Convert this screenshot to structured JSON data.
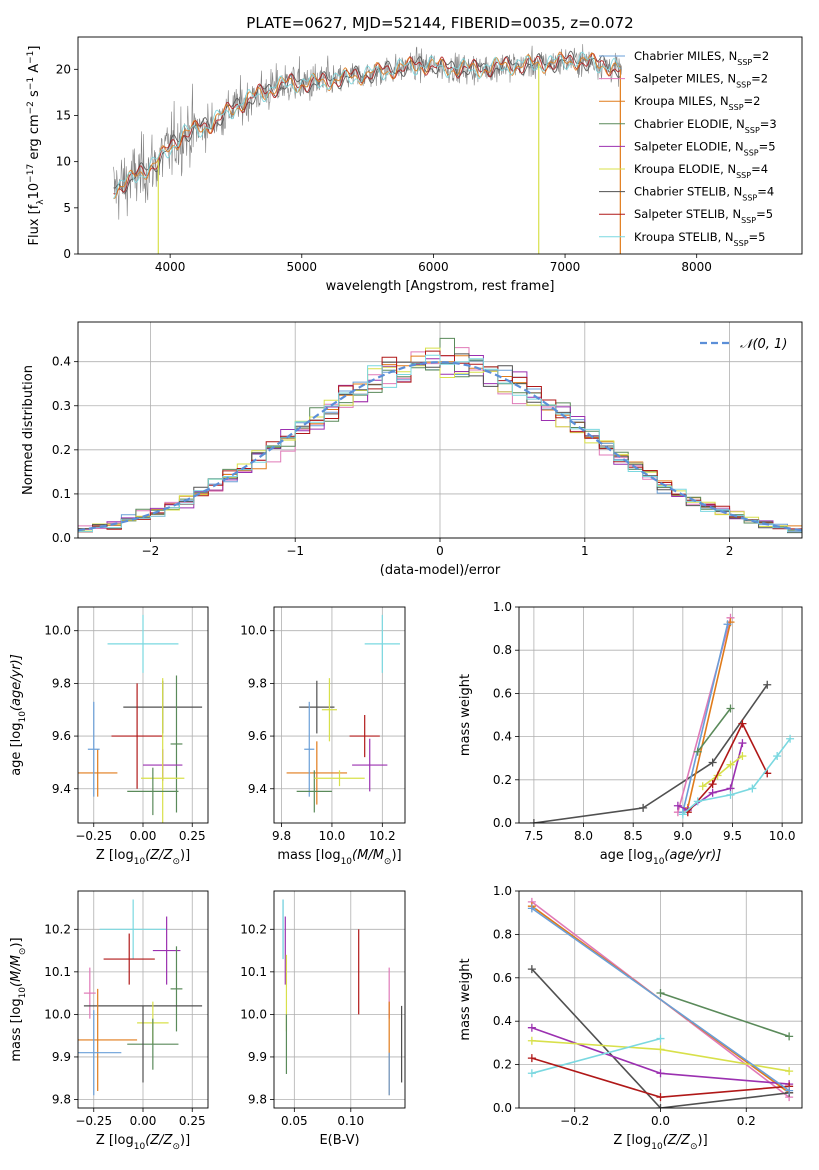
{
  "title": "PLATE=0627, MJD=52144, FIBERID=0035, z=0.072",
  "palette": {
    "Chabrier MILES": "#6a9fd8",
    "Salpeter MILES": "#e07ab8",
    "Kroupa MILES": "#e07b1a",
    "Chabrier ELODIE": "#5a8a5a",
    "Salpeter ELODIE": "#9b30b0",
    "Kroupa ELODIE": "#d8e04a",
    "Chabrier STELIB": "#505050",
    "Salpeter STELIB": "#b01818",
    "Kroupa STELIB": "#7ad8e0",
    "spectrum": "#808080",
    "gauss": "#5b8fd8",
    "grid": "#b0b0b0"
  },
  "chart_data": [
    {
      "id": "spectrum",
      "type": "line",
      "xlabel": "wavelength [Angstrom, rest frame]",
      "ylabel_main": "Flux [f",
      "ylabel_sub": "λ",
      "ylabel_mid": "10",
      "ylabel_sup": "−17",
      "ylabel_tail": " erg cm",
      "ylabel_sup2": "−2",
      "ylabel_tail2": " s",
      "ylabel_sup3": "−1",
      "ylabel_tail3": " A",
      "ylabel_sup4": "−1",
      "ylabel_end": "]",
      "xlim": [
        3300,
        8800
      ],
      "ylim": [
        0,
        23.5
      ],
      "xticks": [
        4000,
        5000,
        6000,
        7000,
        8000
      ],
      "yticks": [
        0,
        5,
        10,
        15,
        20
      ],
      "grid": false,
      "legend_position": "right",
      "continuum": [
        [
          3570,
          7
        ],
        [
          3700,
          8
        ],
        [
          3800,
          9
        ],
        [
          3900,
          10
        ],
        [
          4000,
          11.5
        ],
        [
          4100,
          13
        ],
        [
          4300,
          14
        ],
        [
          4500,
          16
        ],
        [
          4700,
          17.5
        ],
        [
          4900,
          18.5
        ],
        [
          5100,
          18.5
        ],
        [
          5300,
          19
        ],
        [
          5500,
          19.5
        ],
        [
          5700,
          20
        ],
        [
          5900,
          20.5
        ],
        [
          6100,
          20.2
        ],
        [
          6300,
          20
        ],
        [
          6500,
          20.3
        ],
        [
          6700,
          20.5
        ],
        [
          6900,
          20.7
        ],
        [
          7100,
          21
        ],
        [
          7300,
          20.5
        ],
        [
          7400,
          20
        ]
      ],
      "dropouts": [
        {
          "series": "Kroupa ELODIE",
          "x": 3910
        },
        {
          "series": "Kroupa ELODIE",
          "x": 6800
        },
        {
          "series": "Kroupa MILES",
          "x": 7420
        }
      ],
      "legend": [
        {
          "name": "Chabrier MILES",
          "nssp": "2"
        },
        {
          "name": "Salpeter MILES",
          "nssp": "2"
        },
        {
          "name": "Kroupa MILES",
          "nssp": "2"
        },
        {
          "name": "Chabrier ELODIE",
          "nssp": "3"
        },
        {
          "name": "Salpeter ELODIE",
          "nssp": "5"
        },
        {
          "name": "Kroupa ELODIE",
          "nssp": "4"
        },
        {
          "name": "Chabrier STELIB",
          "nssp": "4"
        },
        {
          "name": "Salpeter STELIB",
          "nssp": "5"
        },
        {
          "name": "Kroupa STELIB",
          "nssp": "5"
        }
      ],
      "legend_prefix": "N",
      "legend_sub": "SSP"
    },
    {
      "id": "hist",
      "type": "line",
      "xlabel": "(data-model)/error",
      "ylabel": "Normed distribution",
      "xlim": [
        -2.5,
        2.5
      ],
      "ylim": [
        0,
        0.49
      ],
      "xticks": [
        -2,
        -1,
        0,
        1,
        2
      ],
      "xticklabels": [
        "−2",
        "−1",
        "0",
        "1",
        "2"
      ],
      "yticks": [
        0.0,
        0.1,
        0.2,
        0.3,
        0.4
      ],
      "yticklabels": [
        "0.0",
        "0.1",
        "0.2",
        "0.3",
        "0.4"
      ],
      "grid": true,
      "gauss_label": "𝒩(0, 1)",
      "legend_position": "top-right",
      "bins": 50
    },
    {
      "id": "age_Z",
      "type": "scatter",
      "xlabel": "Z [log",
      "xlabel_sub": "10",
      "xlabel_tail": "(Z/Z",
      "xlabel_sub2": "⊙",
      "xlabel_end": ")]",
      "ylabel": "age  [log",
      "ylabel_sub": "10",
      "ylabel_tail": "(age/yr)]",
      "xlim": [
        -0.33,
        0.33
      ],
      "ylim": [
        9.27,
        10.09
      ],
      "xticks": [
        -0.25,
        0.0,
        0.25
      ],
      "xticklabels": [
        "−0.25",
        "0.00",
        "0.25"
      ],
      "yticks": [
        9.4,
        9.6,
        9.8,
        10.0
      ],
      "yticklabels": [
        "9.4",
        "9.6",
        "9.8",
        "10.0"
      ],
      "grid": true,
      "points": [
        {
          "series": "Kroupa STELIB",
          "x": 0.0,
          "xerr": 0.18,
          "y": 9.95,
          "yerr": 0.11
        },
        {
          "series": "Chabrier STELIB",
          "x": 0.1,
          "xerr": 0.2,
          "y": 9.71,
          "yerr": 0.1
        },
        {
          "series": "Chabrier ELODIE",
          "x": 0.17,
          "xerr": 0.03,
          "y": 9.57,
          "yerr": 0.26
        },
        {
          "series": "Salpeter STELIB",
          "x": -0.03,
          "xerr": 0.13,
          "y": 9.6,
          "yerr": 0.2
        },
        {
          "series": "Salpeter ELODIE",
          "x": 0.1,
          "xerr": 0.1,
          "y": 9.49,
          "yerr": 0.06
        },
        {
          "series": "Kroupa ELODIE",
          "x": 0.1,
          "xerr": 0.11,
          "y": 9.44,
          "yerr": 0.38
        },
        {
          "series": "Kroupa MILES",
          "x": -0.23,
          "xerr": 0.1,
          "y": 9.46,
          "yerr": 0.09
        },
        {
          "series": "Chabrier MILES",
          "x": -0.25,
          "xerr": 0.03,
          "y": 9.55,
          "yerr": 0.18
        },
        {
          "series": "Chabrier ELODIE",
          "x": 0.05,
          "xerr": 0.13,
          "y": 9.39,
          "yerr": 0.09
        }
      ]
    },
    {
      "id": "age_mass",
      "type": "scatter",
      "xlabel": "mass [log",
      "xlabel_sub": "10",
      "xlabel_tail": "(M/M",
      "xlabel_sub2": "⊙",
      "xlabel_end": ")]",
      "xlim": [
        9.77,
        10.29
      ],
      "ylim": [
        9.27,
        10.09
      ],
      "xticks": [
        9.8,
        10.0,
        10.2
      ],
      "xticklabels": [
        "9.8",
        "10.0",
        "10.2"
      ],
      "yticks": [
        9.4,
        9.6,
        9.8,
        10.0
      ],
      "yticklabels": [
        "9.4",
        "9.6",
        "9.8",
        "10.0"
      ],
      "grid": true,
      "points": [
        {
          "series": "Kroupa STELIB",
          "x": 10.2,
          "xerr": 0.07,
          "y": 9.95,
          "yerr": 0.11
        },
        {
          "series": "Chabrier STELIB",
          "x": 9.94,
          "xerr": 0.07,
          "y": 9.71,
          "yerr": 0.1
        },
        {
          "series": "Kroupa ELODIE",
          "x": 9.99,
          "xerr": 0.03,
          "y": 9.7,
          "yerr": 0.12
        },
        {
          "series": "Salpeter STELIB",
          "x": 10.13,
          "xerr": 0.06,
          "y": 9.6,
          "yerr": 0.08
        },
        {
          "series": "Salpeter ELODIE",
          "x": 10.15,
          "xerr": 0.07,
          "y": 9.49,
          "yerr": 0.1
        },
        {
          "series": "Kroupa MILES",
          "x": 9.94,
          "xerr": 0.12,
          "y": 9.46,
          "yerr": 0.12
        },
        {
          "series": "Chabrier MILES",
          "x": 9.91,
          "xerr": 0.02,
          "y": 9.55,
          "yerr": 0.18
        },
        {
          "series": "Chabrier ELODIE",
          "x": 9.93,
          "xerr": 0.07,
          "y": 9.39,
          "yerr": 0.08
        },
        {
          "series": "Kroupa ELODIE",
          "x": 10.03,
          "xerr": 0.1,
          "y": 9.44,
          "yerr": 0.03
        }
      ]
    },
    {
      "id": "mw_age",
      "type": "line",
      "xlabel": "age  [log",
      "xlabel_sub": "10",
      "xlabel_tail": "(age/yr)]",
      "ylabel": "mass weight",
      "xlim": [
        7.35,
        10.2
      ],
      "ylim": [
        0,
        1.0
      ],
      "xticks": [
        7.5,
        8.0,
        8.5,
        9.0,
        9.5,
        10.0
      ],
      "xticklabels": [
        "7.5",
        "8.0",
        "8.5",
        "9.0",
        "9.5",
        "10.0"
      ],
      "yticks": [
        0.0,
        0.2,
        0.4,
        0.6,
        0.8,
        1.0
      ],
      "yticklabels": [
        "0.0",
        "0.2",
        "0.4",
        "0.6",
        "0.8",
        "1.0"
      ],
      "grid": true,
      "series": [
        {
          "name": "Chabrier STELIB",
          "x": [
            7.5,
            8.6,
            9.3,
            9.85
          ],
          "y": [
            0.0,
            0.07,
            0.28,
            0.64
          ]
        },
        {
          "name": "Salpeter MILES",
          "x": [
            8.95,
            9.48
          ],
          "y": [
            0.05,
            0.95
          ]
        },
        {
          "name": "Kroupa MILES",
          "x": [
            9.05,
            9.48
          ],
          "y": [
            0.07,
            0.93
          ]
        },
        {
          "name": "Chabrier MILES",
          "x": [
            9.0,
            9.45
          ],
          "y": [
            0.05,
            0.92
          ]
        },
        {
          "name": "Chabrier ELODIE",
          "x": [
            9.15,
            9.48
          ],
          "y": [
            0.33,
            0.53
          ]
        },
        {
          "name": "Salpeter ELODIE",
          "x": [
            8.95,
            9.05,
            9.3,
            9.48,
            9.6
          ],
          "y": [
            0.08,
            0.06,
            0.14,
            0.16,
            0.37
          ]
        },
        {
          "name": "Kroupa ELODIE",
          "x": [
            9.2,
            9.35,
            9.48,
            9.6
          ],
          "y": [
            0.17,
            0.22,
            0.27,
            0.31
          ]
        },
        {
          "name": "Salpeter STELIB",
          "x": [
            9.05,
            9.3,
            9.6,
            9.85
          ],
          "y": [
            0.05,
            0.18,
            0.46,
            0.23
          ]
        },
        {
          "name": "Kroupa STELIB",
          "x": [
            9.0,
            9.15,
            9.48,
            9.7,
            9.95,
            10.08
          ],
          "y": [
            0.04,
            0.1,
            0.13,
            0.16,
            0.31,
            0.39
          ]
        }
      ]
    },
    {
      "id": "mass_Z",
      "type": "scatter",
      "xlabel": "Z [log",
      "xlabel_sub": "10",
      "xlabel_tail": "(Z/Z",
      "xlabel_sub2": "⊙",
      "xlabel_end": ")]",
      "ylabel": "mass [log",
      "ylabel_sub": "10",
      "ylabel_tail": "(M/M",
      "ylabel_sub2": "⊙",
      "ylabel_end": ")]",
      "xlim": [
        -0.33,
        0.33
      ],
      "ylim": [
        9.78,
        10.29
      ],
      "xticks": [
        -0.25,
        0.0,
        0.25
      ],
      "xticklabels": [
        "−0.25",
        "0.00",
        "0.25"
      ],
      "yticks": [
        9.8,
        9.9,
        10.0,
        10.1,
        10.2
      ],
      "yticklabels": [
        "9.8",
        "9.9",
        "10.0",
        "10.1",
        "10.2"
      ],
      "grid": true,
      "points": [
        {
          "series": "Kroupa STELIB",
          "x": -0.05,
          "xerr": 0.17,
          "y": 10.2,
          "yerr": 0.07
        },
        {
          "series": "Salpeter ELODIE",
          "x": 0.12,
          "xerr": 0.07,
          "y": 10.15,
          "yerr": 0.08
        },
        {
          "series": "Chabrier ELODIE",
          "x": 0.17,
          "xerr": 0.03,
          "y": 10.06,
          "yerr": 0.1
        },
        {
          "series": "Salpeter STELIB",
          "x": -0.07,
          "xerr": 0.13,
          "y": 10.13,
          "yerr": 0.06
        },
        {
          "series": "Salpeter MILES",
          "x": -0.27,
          "xerr": 0.03,
          "y": 10.05,
          "yerr": 0.06
        },
        {
          "series": "Chabrier STELIB",
          "x": 0.0,
          "xerr": 0.3,
          "y": 10.02,
          "yerr": 0.0
        },
        {
          "series": "Kroupa MILES",
          "x": -0.23,
          "xerr": 0.2,
          "y": 9.94,
          "yerr": 0.12
        },
        {
          "series": "Kroupa ELODIE",
          "x": 0.05,
          "xerr": 0.08,
          "y": 9.98,
          "yerr": 0.05
        },
        {
          "series": "Chabrier MILES",
          "x": -0.25,
          "xerr": 0.14,
          "y": 9.91,
          "yerr": 0.1
        },
        {
          "series": "Chabrier ELODIE",
          "x": 0.05,
          "xerr": 0.13,
          "y": 9.93,
          "yerr": 0.06
        },
        {
          "series": "Chabrier STELIB",
          "x": 0.0,
          "xerr": 0.0,
          "y": 9.93,
          "yerr": 0.09
        }
      ]
    },
    {
      "id": "mass_ebv",
      "type": "scatter",
      "xlabel": "E(B-V)",
      "xlim": [
        0.032,
        0.148
      ],
      "ylim": [
        9.78,
        10.29
      ],
      "xticks": [
        0.05,
        0.1
      ],
      "xticklabels": [
        "0.05",
        "0.10"
      ],
      "yticks": [
        9.8,
        9.9,
        10.0,
        10.1,
        10.2
      ],
      "yticklabels": [
        "9.8",
        "9.9",
        "10.0",
        "10.1",
        "10.2"
      ],
      "grid": true,
      "points": [
        {
          "series": "Chabrier MILES",
          "x": 0.04,
          "y": 10.2,
          "yerr": 0.07
        },
        {
          "series": "Kroupa STELIB",
          "x": 0.04,
          "y": 10.2,
          "yerr": 0.07
        },
        {
          "series": "Salpeter ELODIE",
          "x": 0.042,
          "y": 10.15,
          "yerr": 0.08
        },
        {
          "series": "Kroupa ELODIE",
          "x": 0.043,
          "y": 10.05,
          "yerr": 0.09
        },
        {
          "series": "Chabrier ELODIE",
          "x": 0.043,
          "y": 9.93,
          "yerr": 0.07
        },
        {
          "series": "Salpeter STELIB",
          "x": 0.107,
          "y": 10.1,
          "yerr": 0.1
        },
        {
          "series": "Salpeter MILES",
          "x": 0.134,
          "y": 10.05,
          "yerr": 0.06
        },
        {
          "series": "Kroupa MILES",
          "x": 0.134,
          "y": 9.92,
          "yerr": 0.11
        },
        {
          "series": "Chabrier MILES",
          "x": 0.134,
          "y": 9.86,
          "yerr": 0.05
        },
        {
          "series": "Chabrier STELIB",
          "x": 0.145,
          "y": 9.93,
          "yerr": 0.09
        }
      ]
    },
    {
      "id": "mw_Z",
      "type": "line",
      "xlabel": "Z [log",
      "xlabel_sub": "10",
      "xlabel_tail": "(Z/Z",
      "xlabel_sub2": "⊙",
      "xlabel_end": ")]",
      "ylabel": "mass weight",
      "xlim": [
        -0.33,
        0.33
      ],
      "ylim": [
        0,
        1.0
      ],
      "xticks": [
        -0.2,
        0.0,
        0.2
      ],
      "xticklabels": [
        "−0.2",
        "0.0",
        "0.2"
      ],
      "yticks": [
        0.0,
        0.2,
        0.4,
        0.6,
        0.8,
        1.0
      ],
      "yticklabels": [
        "0.0",
        "0.2",
        "0.4",
        "0.6",
        "0.8",
        "1.0"
      ],
      "grid": true,
      "series": [
        {
          "name": "Salpeter MILES",
          "x": [
            -0.3,
            0.3
          ],
          "y": [
            0.95,
            0.05
          ]
        },
        {
          "name": "Kroupa MILES",
          "x": [
            -0.3,
            0.3
          ],
          "y": [
            0.93,
            0.07
          ]
        },
        {
          "name": "Chabrier ELODIE",
          "x": [
            0.0,
            0.3
          ],
          "y": [
            0.53,
            0.33
          ]
        },
        {
          "name": "Chabrier STELIB",
          "x": [
            -0.3,
            0.0,
            0.3
          ],
          "y": [
            0.64,
            0.0,
            0.07
          ]
        },
        {
          "name": "Salpeter ELODIE",
          "x": [
            -0.3,
            0.0,
            0.3
          ],
          "y": [
            0.37,
            0.16,
            0.11
          ]
        },
        {
          "name": "Kroupa ELODIE",
          "x": [
            -0.3,
            0.0,
            0.3
          ],
          "y": [
            0.31,
            0.27,
            0.17
          ]
        },
        {
          "name": "Kroupa STELIB",
          "x": [
            -0.3,
            0.0
          ],
          "y": [
            0.16,
            0.32
          ]
        },
        {
          "name": "Salpeter STELIB",
          "x": [
            -0.3,
            0.0,
            0.3
          ],
          "y": [
            0.23,
            0.05,
            0.1
          ]
        },
        {
          "name": "Chabrier MILES",
          "x": [
            -0.3,
            0.3
          ],
          "y": [
            0.92,
            0.08
          ]
        }
      ]
    }
  ]
}
